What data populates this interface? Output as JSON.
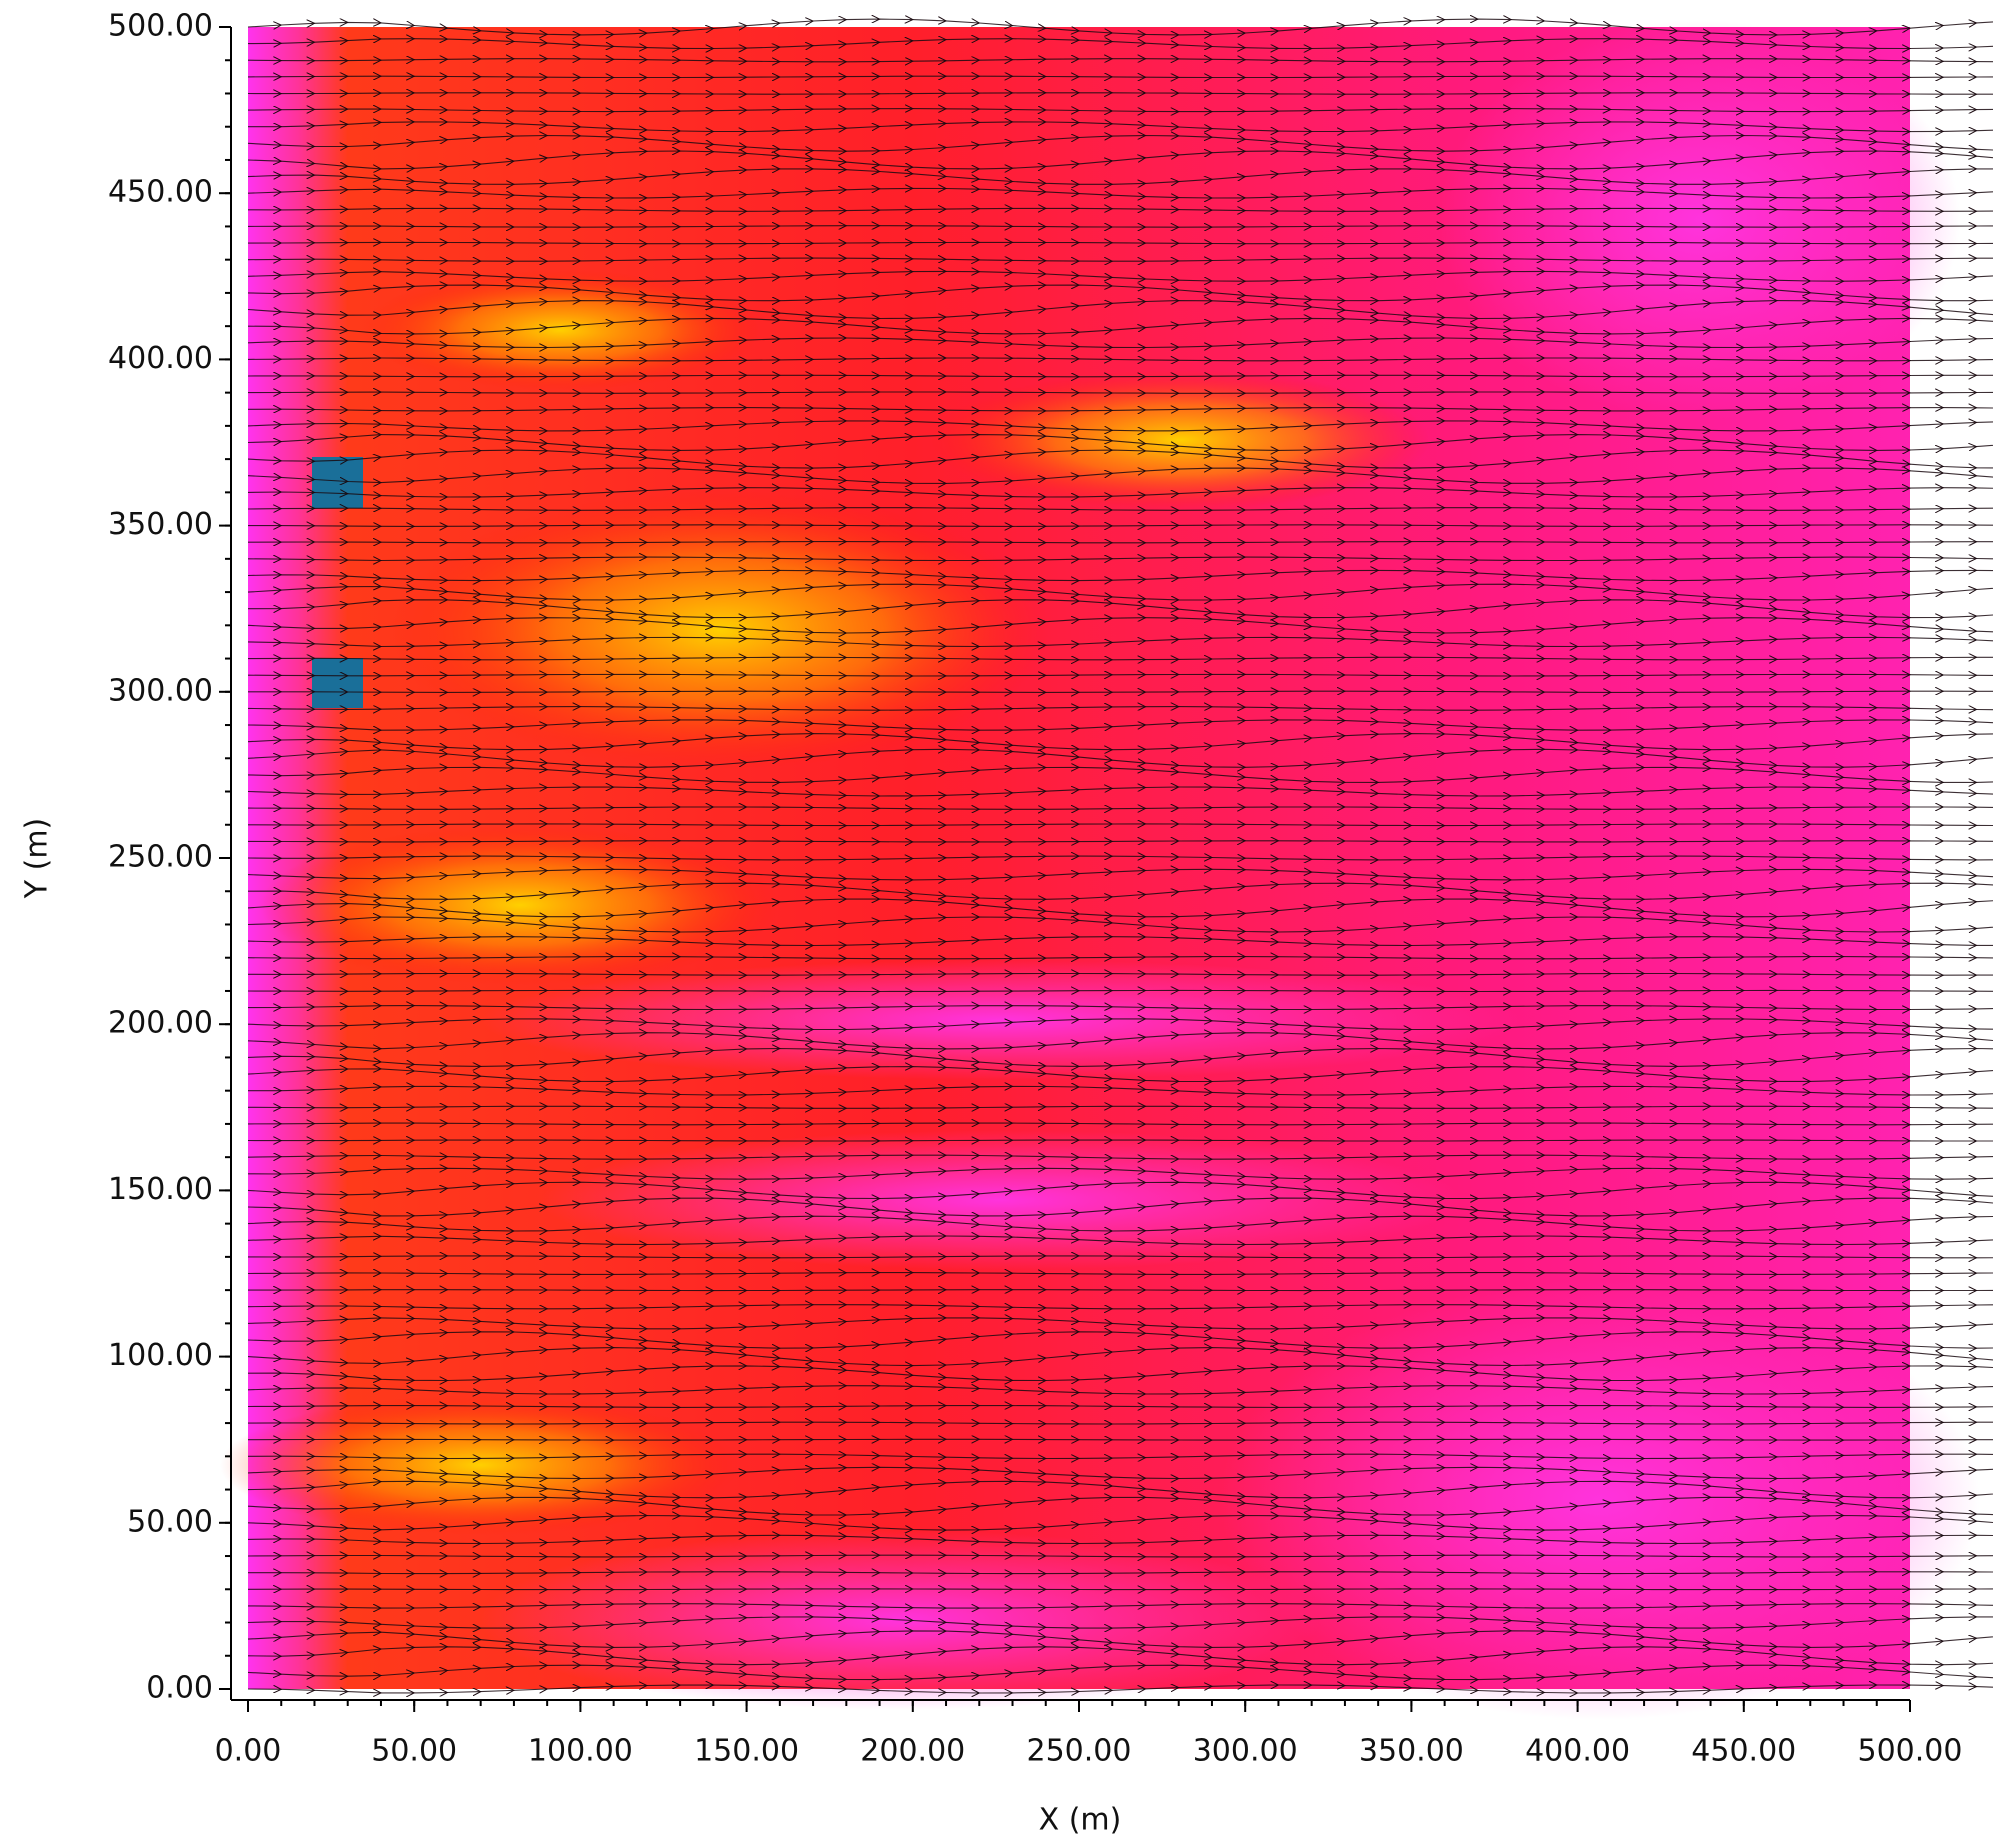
{
  "chart_data": {
    "type": "vector-field",
    "x_label": "X (m)",
    "y_label": "Y (m)",
    "xlim": [
      0,
      500
    ],
    "ylim": [
      0,
      500
    ],
    "xticks": [
      {
        "value": 0,
        "label": "0.00"
      },
      {
        "value": 50,
        "label": "50.00"
      },
      {
        "value": 100,
        "label": "100.00"
      },
      {
        "value": 150,
        "label": "150.00"
      },
      {
        "value": 200,
        "label": "200.00"
      },
      {
        "value": 250,
        "label": "250.00"
      },
      {
        "value": 300,
        "label": "300.00"
      },
      {
        "value": 350,
        "label": "350.00"
      },
      {
        "value": 400,
        "label": "400.00"
      },
      {
        "value": 450,
        "label": "450.00"
      },
      {
        "value": 500,
        "label": "500.00"
      }
    ],
    "yticks": [
      {
        "value": 0,
        "label": "0.00"
      },
      {
        "value": 50,
        "label": "50.00"
      },
      {
        "value": 100,
        "label": "100.00"
      },
      {
        "value": 150,
        "label": "150.00"
      },
      {
        "value": 200,
        "label": "200.00"
      },
      {
        "value": 250,
        "label": "250.00"
      },
      {
        "value": 300,
        "label": "300.00"
      },
      {
        "value": 350,
        "label": "350.00"
      },
      {
        "value": 400,
        "label": "400.00"
      },
      {
        "value": 450,
        "label": "450.00"
      },
      {
        "value": 500,
        "label": "500.00"
      }
    ]
  }
}
